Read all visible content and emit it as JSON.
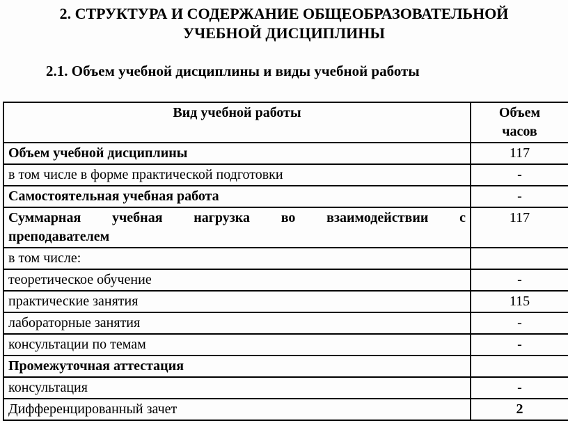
{
  "page": {
    "title": "2. СТРУКТУРА И СОДЕРЖАНИЕ ОБЩЕОБРАЗОВАТЕЛЬНОЙ УЧЕБНОЙ ДИСЦИПЛИНЫ",
    "subtitle": "2.1. Объем учебной дисциплины и виды учебной работы"
  },
  "table": {
    "headers": {
      "work_type": "Вид учебной работы",
      "hours": "Объем часов"
    },
    "rows": [
      {
        "label": "Объем учебной дисциплины",
        "hours": "117"
      },
      {
        "label": "в том числе в форме практической подготовки",
        "hours": "-"
      },
      {
        "label": "Самостоятельная учебная работа",
        "hours": "-"
      },
      {
        "label_lines": [
          "Суммарная учебная нагрузка во взаимодействии с",
          "преподавателем"
        ],
        "hours": "117"
      },
      {
        "label": "в том числе:",
        "hours": ""
      },
      {
        "label": "теоретическое обучение",
        "hours": "-"
      },
      {
        "label": "практические занятия",
        "hours": "115"
      },
      {
        "label": "лабораторные занятия",
        "hours": "-"
      },
      {
        "label": "консультации по темам",
        "hours": "-"
      },
      {
        "label": "Промежуточная аттестация",
        "hours": ""
      },
      {
        "label": "консультация",
        "hours": "-"
      },
      {
        "label": "Дифференцированный зачет",
        "hours": "2"
      }
    ]
  }
}
